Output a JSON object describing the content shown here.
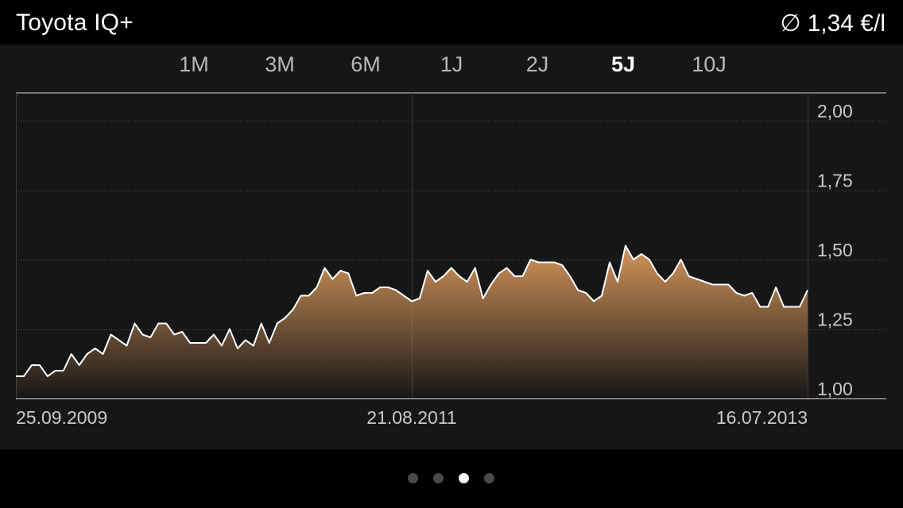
{
  "header": {
    "title": "Toyota IQ+",
    "avg_symbol": "∅",
    "avg_value": "1,34 €/l"
  },
  "tabs": [
    {
      "label": "1M",
      "active": false
    },
    {
      "label": "3M",
      "active": false
    },
    {
      "label": "6M",
      "active": false
    },
    {
      "label": "1J",
      "active": false
    },
    {
      "label": "2J",
      "active": false
    },
    {
      "label": "5J",
      "active": true
    },
    {
      "label": "10J",
      "active": false
    }
  ],
  "pager": {
    "count": 4,
    "active_index": 2
  },
  "colors": {
    "accent": "#d4955a",
    "line": "#ffffff",
    "panel": "#161616"
  },
  "chart_data": {
    "type": "area",
    "x_start": "25.09.2009",
    "x_end": "16.07.2013",
    "x_ticks": [
      "25.09.2009",
      "21.08.2011",
      "16.07.2013"
    ],
    "y_ticks": [
      "1,00",
      "1,25",
      "1,50",
      "1,75",
      "2,00"
    ],
    "ylim": [
      1.0,
      2.1
    ],
    "grid": true,
    "values": [
      1.08,
      1.08,
      1.12,
      1.12,
      1.08,
      1.1,
      1.1,
      1.16,
      1.12,
      1.16,
      1.18,
      1.16,
      1.23,
      1.21,
      1.19,
      1.27,
      1.23,
      1.22,
      1.27,
      1.27,
      1.23,
      1.24,
      1.2,
      1.2,
      1.2,
      1.23,
      1.19,
      1.25,
      1.18,
      1.21,
      1.19,
      1.27,
      1.2,
      1.27,
      1.29,
      1.32,
      1.37,
      1.37,
      1.4,
      1.47,
      1.43,
      1.46,
      1.45,
      1.37,
      1.38,
      1.38,
      1.4,
      1.4,
      1.39,
      1.37,
      1.35,
      1.36,
      1.46,
      1.42,
      1.44,
      1.47,
      1.44,
      1.42,
      1.47,
      1.36,
      1.41,
      1.45,
      1.47,
      1.44,
      1.44,
      1.5,
      1.49,
      1.49,
      1.49,
      1.48,
      1.44,
      1.39,
      1.38,
      1.35,
      1.37,
      1.49,
      1.42,
      1.55,
      1.5,
      1.52,
      1.5,
      1.45,
      1.42,
      1.45,
      1.5,
      1.44,
      1.43,
      1.42,
      1.41,
      1.41,
      1.41,
      1.38,
      1.37,
      1.38,
      1.33,
      1.33,
      1.4,
      1.33,
      1.33,
      1.33,
      1.39
    ]
  }
}
